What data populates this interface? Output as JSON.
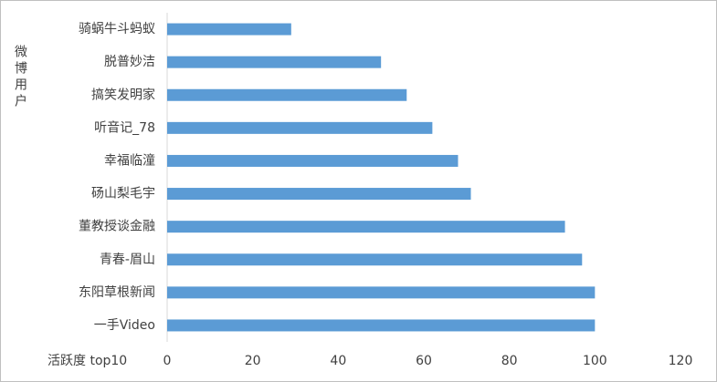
{
  "chart_data": {
    "type": "bar",
    "orientation": "horizontal",
    "x_label": "活跃度 top10",
    "y_label": "微博用户",
    "categories": [
      "骑蜗牛斗蚂蚁",
      "脱普妙洁",
      "搞笑发明家",
      "听音记_78",
      "幸福临潼",
      "砀山梨毛宇",
      "董教授谈金融",
      "青春-眉山",
      "东阳草根新闻",
      "一手Video"
    ],
    "values": [
      29,
      50,
      56,
      62,
      68,
      71,
      93,
      97,
      100,
      100
    ],
    "color": "#5b9bd5",
    "xlim": [
      0,
      120
    ],
    "xticks": [
      0,
      20,
      40,
      60,
      80,
      100,
      120
    ],
    "grid": false
  }
}
